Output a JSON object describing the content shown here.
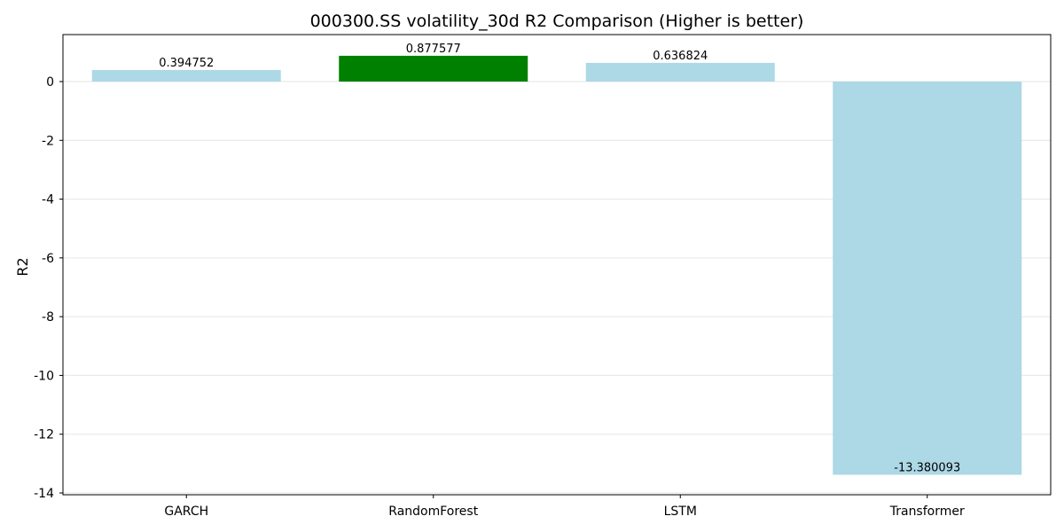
{
  "chart_data": {
    "type": "bar",
    "title": "000300.SS volatility_30d R2 Comparison (Higher is better)",
    "xlabel": "",
    "ylabel": "R2",
    "categories": [
      "GARCH",
      "RandomForest",
      "LSTM",
      "Transformer"
    ],
    "values": [
      0.394752,
      0.877577,
      0.636824,
      -13.380093
    ],
    "value_labels": [
      "0.394752",
      "0.877577",
      "0.636824",
      "-13.380093"
    ],
    "bar_colors": [
      "#add8e6",
      "#008000",
      "#add8e6",
      "#add8e6"
    ],
    "ylim": [
      -14.0,
      1.6
    ],
    "yticks": [
      0,
      -2,
      -4,
      -6,
      -8,
      -10,
      -12,
      -14
    ],
    "ytick_labels": [
      "0",
      "-2",
      "-4",
      "-6",
      "-8",
      "-10",
      "-12",
      "-14"
    ],
    "grid": true,
    "grid_axis": "y",
    "highlight_best": "RandomForest"
  }
}
